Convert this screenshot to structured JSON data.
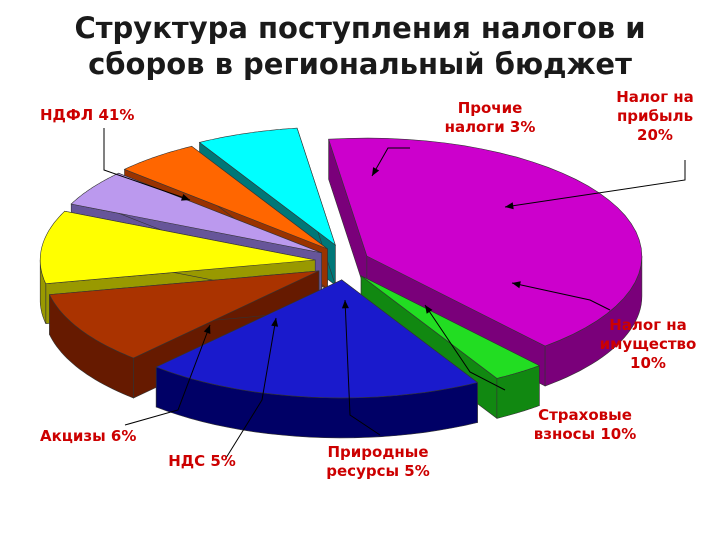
{
  "title_line1": "Структура поступления налогов и",
  "title_line2": "сборов в региональный бюджет",
  "label_color": "#cc0000",
  "chart_data": {
    "type": "pie",
    "style": "3d-exploded",
    "title": "Структура поступления налогов и сборов в региональный бюджет",
    "slices": [
      {
        "key": "ndfl",
        "label_lines": [
          "НДФЛ  41%"
        ],
        "value": 41,
        "color": "#cc00cc",
        "side": "#7a007a"
      },
      {
        "key": "other",
        "label_lines": [
          "Прочие",
          "налоги  3%"
        ],
        "value": 3,
        "color": "#22dd22",
        "side": "#118811"
      },
      {
        "key": "profit",
        "label_lines": [
          "Налог на",
          "прибыль",
          "20%"
        ],
        "value": 20,
        "color": "#1a1acc",
        "side": "#000066"
      },
      {
        "key": "property",
        "label_lines": [
          "Налог на",
          "имущество",
          "10%"
        ],
        "value": 10,
        "color": "#aa3300",
        "side": "#661a00"
      },
      {
        "key": "insurance",
        "label_lines": [
          "Страховые",
          "взносы 10%"
        ],
        "value": 10,
        "color": "#ffff00",
        "side": "#999900"
      },
      {
        "key": "natural",
        "label_lines": [
          "Природные",
          "ресурсы 5%"
        ],
        "value": 5,
        "color": "#bb99ee",
        "side": "#665599"
      },
      {
        "key": "vat",
        "label_lines": [
          "НДС 5%"
        ],
        "value": 5,
        "color": "#ff6600",
        "side": "#993300"
      },
      {
        "key": "excise",
        "label_lines": [
          "Акцизы 6%"
        ],
        "value": 6,
        "color": "#00ffff",
        "side": "#007777"
      }
    ]
  }
}
